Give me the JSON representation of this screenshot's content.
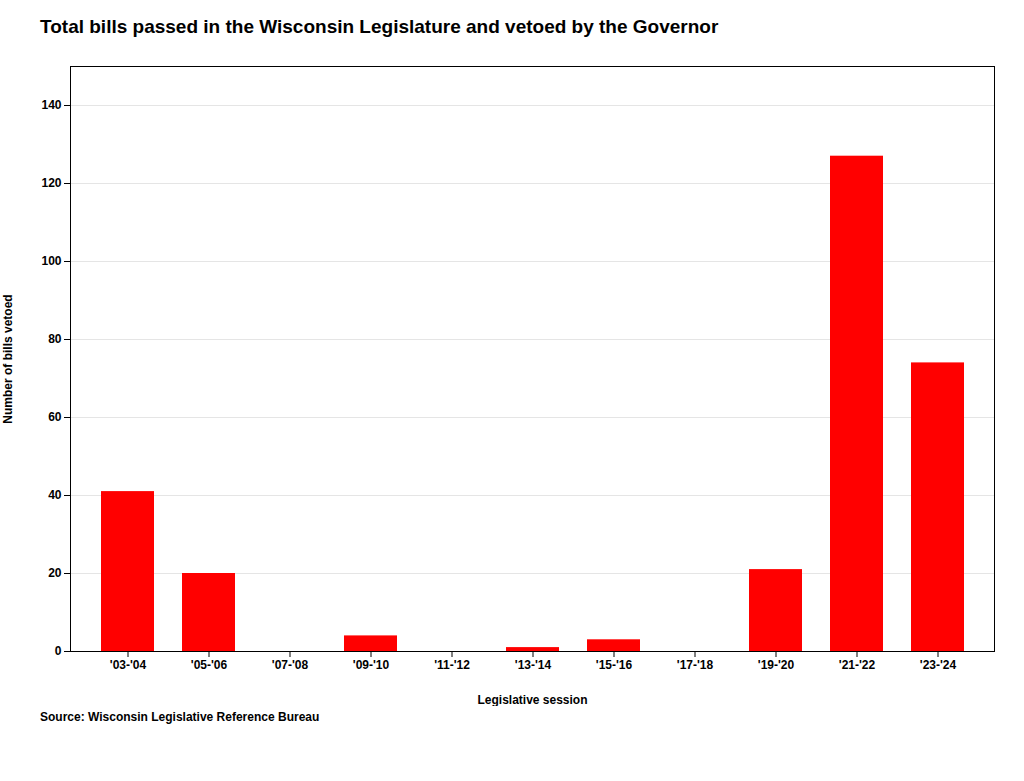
{
  "chart_data": {
    "type": "bar",
    "title": "Total bills passed in the Wisconsin Legislature and vetoed by the Governor",
    "categories": [
      "'03-'04",
      "'05-'06",
      "'07-'08",
      "'09-'10",
      "'11-'12",
      "'13-'14",
      "'15-'16",
      "'17-'18",
      "'19-'20",
      "'21-'22",
      "'23-'24"
    ],
    "values": [
      41,
      20,
      0,
      4,
      0,
      1,
      3,
      0,
      21,
      127,
      74
    ],
    "color": "#ff0000",
    "xlabel": "Legislative session",
    "ylabel": "Number of bills vetoed",
    "ylim": [
      0,
      150
    ],
    "yticks": [
      0,
      20,
      40,
      60,
      80,
      100,
      120,
      140
    ],
    "grid": true,
    "annotations": [
      "Source: Wisconsin Legislative Reference Bureau"
    ]
  }
}
